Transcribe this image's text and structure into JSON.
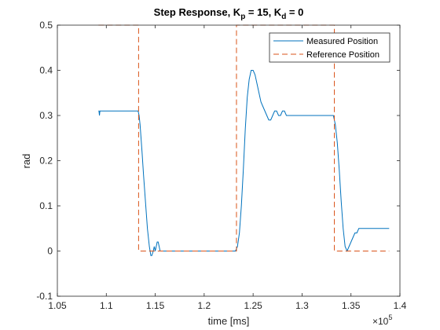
{
  "chart_data": {
    "type": "line",
    "title_parts": [
      "Step Response, K",
      "p",
      " = 15, K",
      "d",
      " = 0"
    ],
    "xlabel": "time [ms]",
    "ylabel": "rad",
    "x_exponent_base": "×10",
    "x_exponent_power": "5",
    "xlim": [
      1.05,
      1.4
    ],
    "ylim": [
      -0.1,
      0.5
    ],
    "x_ticks": [
      1.05,
      1.1,
      1.15,
      1.2,
      1.25,
      1.3,
      1.35,
      1.4
    ],
    "x_tick_labels": [
      "1.05",
      "1.1",
      "1.15",
      "1.2",
      "1.25",
      "1.3",
      "1.35",
      "1.4"
    ],
    "y_ticks": [
      -0.1,
      0,
      0.1,
      0.2,
      0.3,
      0.4,
      0.5
    ],
    "y_tick_labels": [
      "-0.1",
      "0",
      "0.1",
      "0.2",
      "0.3",
      "0.4",
      "0.5"
    ],
    "grid": false,
    "legend_position": "top-right",
    "series": [
      {
        "name": "Measured Position",
        "color": "#0072BD",
        "dash": "solid",
        "x": [
          1.092,
          1.0925,
          1.093,
          1.0935,
          1.094,
          1.1,
          1.11,
          1.12,
          1.13,
          1.1325,
          1.1335,
          1.1345,
          1.1355,
          1.1365,
          1.138,
          1.14,
          1.142,
          1.144,
          1.1455,
          1.1465,
          1.148,
          1.149,
          1.15,
          1.151,
          1.152,
          1.153,
          1.154,
          1.155,
          1.156,
          1.157,
          1.158,
          1.159,
          1.16,
          1.161,
          1.162,
          1.17,
          1.18,
          1.19,
          1.2,
          1.21,
          1.22,
          1.232,
          1.234,
          1.236,
          1.238,
          1.24,
          1.242,
          1.244,
          1.246,
          1.248,
          1.25,
          1.252,
          1.254,
          1.256,
          1.258,
          1.26,
          1.262,
          1.264,
          1.266,
          1.268,
          1.27,
          1.272,
          1.274,
          1.276,
          1.278,
          1.28,
          1.282,
          1.284,
          1.286,
          1.288,
          1.29,
          1.3,
          1.31,
          1.32,
          1.332,
          1.334,
          1.336,
          1.338,
          1.34,
          1.342,
          1.344,
          1.346,
          1.348,
          1.35,
          1.352,
          1.354,
          1.356,
          1.358,
          1.36,
          1.37,
          1.38,
          1.389
        ],
        "y": [
          0.31,
          0.31,
          0.3,
          0.31,
          0.31,
          0.31,
          0.31,
          0.31,
          0.31,
          0.31,
          0.3,
          0.28,
          0.25,
          0.22,
          0.17,
          0.11,
          0.05,
          0.01,
          -0.01,
          -0.01,
          0.0,
          0.01,
          0.0,
          0.01,
          0.02,
          0.02,
          0.01,
          0.0,
          0.0,
          0.0,
          0.0,
          0.0,
          0.0,
          0.0,
          0.0,
          0.0,
          0.0,
          0.0,
          0.0,
          0.0,
          0.0,
          0.0,
          0.01,
          0.04,
          0.1,
          0.18,
          0.27,
          0.34,
          0.38,
          0.4,
          0.4,
          0.39,
          0.37,
          0.35,
          0.33,
          0.32,
          0.31,
          0.3,
          0.29,
          0.29,
          0.3,
          0.31,
          0.31,
          0.3,
          0.3,
          0.31,
          0.31,
          0.3,
          0.3,
          0.3,
          0.3,
          0.3,
          0.3,
          0.3,
          0.3,
          0.28,
          0.24,
          0.18,
          0.11,
          0.05,
          0.01,
          0.0,
          0.01,
          0.02,
          0.03,
          0.04,
          0.04,
          0.05,
          0.05,
          0.05,
          0.05,
          0.05
        ]
      },
      {
        "name": "Reference Position",
        "color": "#D95319",
        "dash": "dashed",
        "x": [
          1.092,
          1.133,
          1.133,
          1.233,
          1.233,
          1.333,
          1.333,
          1.389
        ],
        "y": [
          0.5,
          0.5,
          0.0,
          0.0,
          0.5,
          0.5,
          0.0,
          0.0
        ]
      }
    ]
  }
}
